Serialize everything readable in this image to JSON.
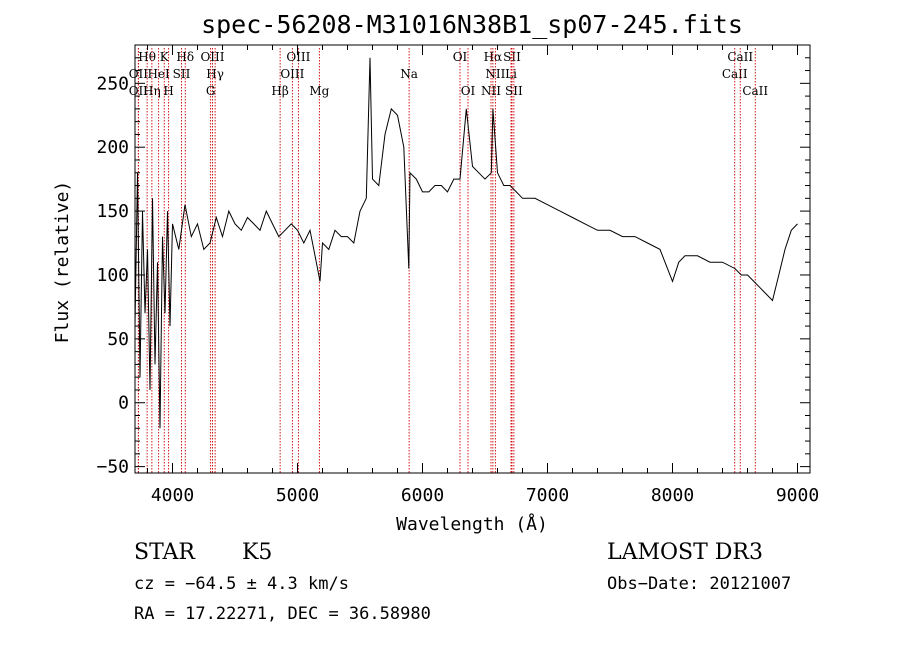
{
  "chart_data": {
    "type": "line",
    "title": "spec-56208-M31016N38B1_sp07-245.fits",
    "xlabel": "Wavelength (Å)",
    "ylabel": "Flux (relative)",
    "xlim": [
      3700,
      9100
    ],
    "ylim": [
      -55,
      280
    ],
    "xticks": [
      4000,
      5000,
      6000,
      7000,
      8000,
      9000
    ],
    "yticks": [
      -50,
      0,
      50,
      100,
      150,
      200,
      250
    ],
    "grid": false,
    "series": [
      {
        "color": "#000000",
        "x": [
          3700,
          3720,
          3740,
          3760,
          3780,
          3800,
          3820,
          3840,
          3860,
          3880,
          3900,
          3920,
          3940,
          3960,
          3980,
          4000,
          4050,
          4100,
          4150,
          4200,
          4250,
          4300,
          4350,
          4400,
          4450,
          4500,
          4550,
          4600,
          4650,
          4700,
          4750,
          4800,
          4850,
          4900,
          4950,
          5000,
          5050,
          5100,
          5150,
          5180,
          5200,
          5250,
          5300,
          5350,
          5400,
          5450,
          5500,
          5550,
          5580,
          5600,
          5650,
          5700,
          5750,
          5800,
          5850,
          5880,
          5890,
          5900,
          5950,
          6000,
          6050,
          6100,
          6150,
          6200,
          6250,
          6300,
          6350,
          6400,
          6450,
          6500,
          6550,
          6563,
          6600,
          6650,
          6700,
          6750,
          6800,
          6900,
          7000,
          7100,
          7200,
          7300,
          7400,
          7500,
          7600,
          7700,
          7800,
          7900,
          8000,
          8050,
          8100,
          8200,
          8300,
          8400,
          8500,
          8550,
          8600,
          8650,
          8700,
          8750,
          8800,
          8850,
          8900,
          8950,
          9000
        ],
        "values": [
          60,
          180,
          20,
          150,
          70,
          120,
          10,
          160,
          30,
          110,
          -20,
          130,
          70,
          150,
          60,
          140,
          120,
          155,
          130,
          140,
          120,
          125,
          145,
          130,
          150,
          140,
          135,
          145,
          140,
          135,
          150,
          140,
          130,
          135,
          140,
          135,
          125,
          135,
          110,
          95,
          125,
          120,
          135,
          130,
          130,
          125,
          150,
          160,
          270,
          175,
          170,
          210,
          230,
          225,
          200,
          130,
          105,
          180,
          175,
          165,
          165,
          170,
          170,
          165,
          175,
          175,
          230,
          185,
          180,
          175,
          180,
          230,
          180,
          170,
          170,
          165,
          160,
          160,
          155,
          150,
          145,
          140,
          135,
          135,
          130,
          130,
          125,
          120,
          95,
          110,
          115,
          115,
          110,
          110,
          105,
          100,
          100,
          95,
          90,
          85,
          80,
          100,
          120,
          135,
          140
        ]
      }
    ],
    "line_markers": [
      {
        "x": 3797,
        "label": "Hθ",
        "row": 0
      },
      {
        "x": 3727,
        "label": "OII",
        "row": 1
      },
      {
        "x": 3727,
        "label": "OII",
        "row": 2
      },
      {
        "x": 3835,
        "label": "Hη",
        "row": 2
      },
      {
        "x": 3889,
        "label": "HeI",
        "row": 1
      },
      {
        "x": 3934,
        "label": "K",
        "row": 0
      },
      {
        "x": 3969,
        "label": "H",
        "row": 2
      },
      {
        "x": 4072,
        "label": "SII",
        "row": 1
      },
      {
        "x": 4102,
        "label": "Hδ",
        "row": 0
      },
      {
        "x": 4320,
        "label": "OIII",
        "row": 0
      },
      {
        "x": 4341,
        "label": "Hγ",
        "row": 1
      },
      {
        "x": 4305,
        "label": "G",
        "row": 2
      },
      {
        "x": 4861,
        "label": "Hβ",
        "row": 2
      },
      {
        "x": 4959,
        "label": "OIII",
        "row": 1
      },
      {
        "x": 5007,
        "label": "OIII",
        "row": 0
      },
      {
        "x": 5175,
        "label": "Mg",
        "row": 2
      },
      {
        "x": 5893,
        "label": "Na",
        "row": 1
      },
      {
        "x": 6300,
        "label": "OI",
        "row": 0
      },
      {
        "x": 6364,
        "label": "OI",
        "row": 2
      },
      {
        "x": 6563,
        "label": "Hα",
        "row": 0
      },
      {
        "x": 6583,
        "label": "NII",
        "row": 1
      },
      {
        "x": 6548,
        "label": "NII",
        "row": 2
      },
      {
        "x": 6716,
        "label": "SII",
        "row": 0
      },
      {
        "x": 6708,
        "label": "Li",
        "row": 1
      },
      {
        "x": 6731,
        "label": "SII",
        "row": 2
      },
      {
        "x": 8498,
        "label": "CaII",
        "row": 1
      },
      {
        "x": 8542,
        "label": "CaII",
        "row": 0
      },
      {
        "x": 8662,
        "label": "CaII",
        "row": 2
      }
    ]
  },
  "info": {
    "class": "STAR",
    "subclass": "K5",
    "survey": "LAMOST DR3",
    "cz": "cz = −64.5 ± 4.3 km/s",
    "obs_date": "Obs−Date: 20121007",
    "radec": "RA =  17.22271, DEC =  36.58980"
  }
}
